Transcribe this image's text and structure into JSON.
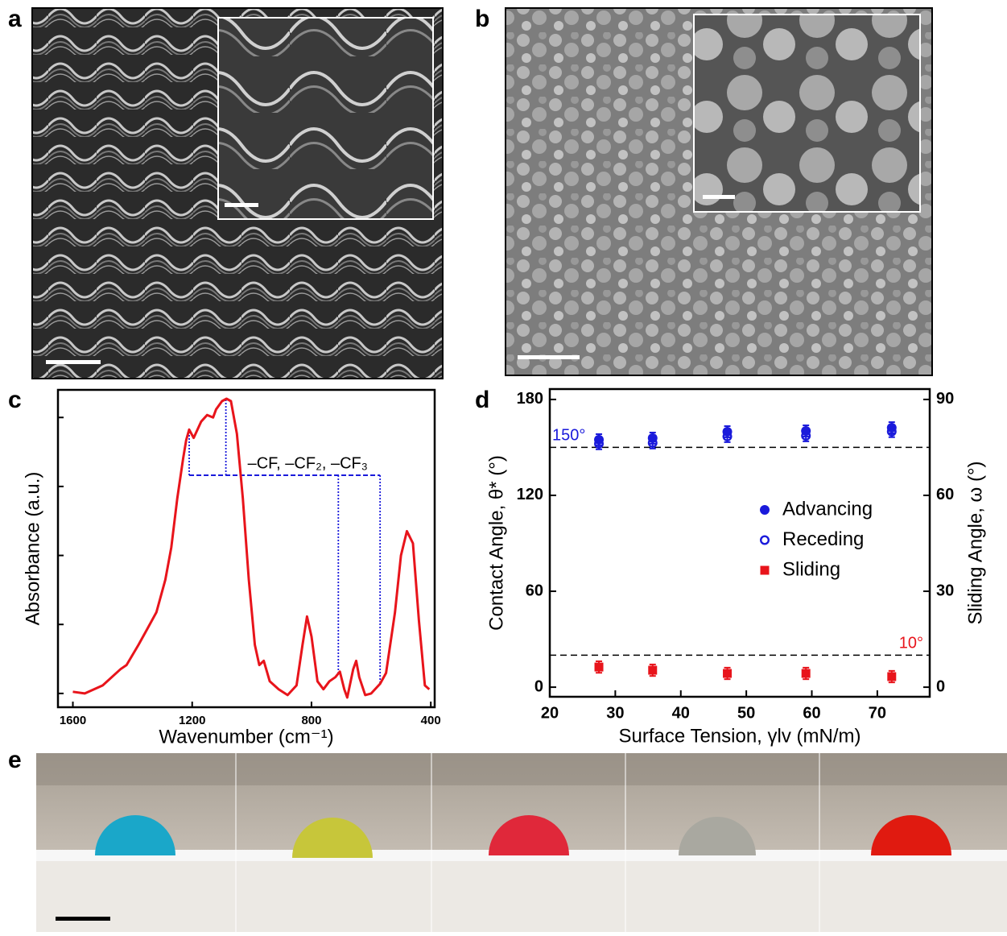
{
  "panel_labels": [
    "a",
    "b",
    "c",
    "d",
    "e"
  ],
  "chart_data": [
    {
      "type": "line",
      "xlabel": "Wavenumber (cm⁻¹)",
      "ylabel": "Absorbance (a.u.)",
      "annotation": "–CF, –CF₂, –CF₃",
      "xlim": [
        1650,
        387
      ],
      "xticks": [
        1600,
        1200,
        800,
        400
      ],
      "ylim": [
        -0.05,
        1.1
      ],
      "yticks": [
        0,
        0.25,
        0.5,
        0.75,
        1
      ],
      "ytick_labels": false,
      "peak_markers": [
        1210,
        1087,
        710,
        570
      ],
      "x": [
        1600,
        1560,
        1500,
        1440,
        1420,
        1380,
        1350,
        1320,
        1290,
        1270,
        1250,
        1230,
        1220,
        1210,
        1195,
        1170,
        1150,
        1130,
        1120,
        1100,
        1085,
        1070,
        1050,
        1030,
        1010,
        990,
        975,
        960,
        940,
        910,
        880,
        850,
        830,
        815,
        800,
        780,
        760,
        740,
        720,
        705,
        690,
        680,
        660,
        650,
        640,
        620,
        600,
        570,
        550,
        520,
        500,
        480,
        460,
        440,
        420,
        405
      ],
      "series": [
        {
          "color": "#e8141b",
          "values": [
            0.006,
            0,
            0.029,
            0.088,
            0.103,
            0.176,
            0.235,
            0.294,
            0.412,
            0.529,
            0.706,
            0.853,
            0.918,
            0.956,
            0.926,
            0.985,
            1.009,
            1.0,
            1.029,
            1.059,
            1.068,
            1.059,
            0.941,
            0.706,
            0.412,
            0.176,
            0.103,
            0.118,
            0.044,
            0.015,
            -0.006,
            0.029,
            0.176,
            0.279,
            0.206,
            0.044,
            0.015,
            0.044,
            0.059,
            0.079,
            0.015,
            -0.015,
            0.088,
            0.118,
            0.059,
            -0.006,
            0,
            0.035,
            0.074,
            0.294,
            0.5,
            0.588,
            0.544,
            0.265,
            0.029,
            0.015
          ]
        }
      ]
    },
    {
      "type": "scatter",
      "xlabel": "Surface Tension, γlv (mN/m)",
      "ylabel": "Contact Angle, θ* (°)",
      "y2label": "Sliding Angle, ω (°)",
      "xlim": [
        20,
        78
      ],
      "xticks": [
        20,
        30,
        40,
        50,
        60,
        70
      ],
      "ylim": [
        -6,
        186.5
      ],
      "yticks": [
        0,
        60,
        120,
        180
      ],
      "y2lim": [
        -3,
        93.25
      ],
      "y2ticks": [
        0,
        30,
        60,
        90
      ],
      "legend": "right",
      "reference_lines": [
        {
          "value": 150,
          "label": "150°",
          "axis": "y",
          "color": "#1a1adb"
        },
        {
          "value": 10,
          "label": "10°",
          "axis": "y2",
          "color": "#e8141b"
        }
      ],
      "x": [
        27.5,
        35.7,
        47.1,
        59.1,
        72.2
      ],
      "series": [
        {
          "name": "Advancing",
          "color": "#1a1adb",
          "marker": "circle",
          "values": [
            154.8,
            155.8,
            159.8,
            160.3,
            162.3
          ],
          "errors": [
            3.5,
            3.5,
            3.5,
            3.5,
            3.5
          ]
        },
        {
          "name": "Receding",
          "color": "#1a1adb",
          "marker": "open-circle",
          "values": [
            152.3,
            152.8,
            156.8,
            157.3,
            159.9
          ],
          "errors": [
            3.5,
            3.5,
            3.5,
            3.5,
            3.5
          ]
        },
        {
          "name": "Sliding",
          "color": "#e8141b",
          "marker": "square",
          "axis": "y2",
          "values": [
            6.3,
            5.3,
            4.3,
            4.3,
            3.3
          ],
          "errors": [
            1.8,
            1.8,
            1.8,
            1.8,
            1.8
          ]
        }
      ]
    }
  ]
}
